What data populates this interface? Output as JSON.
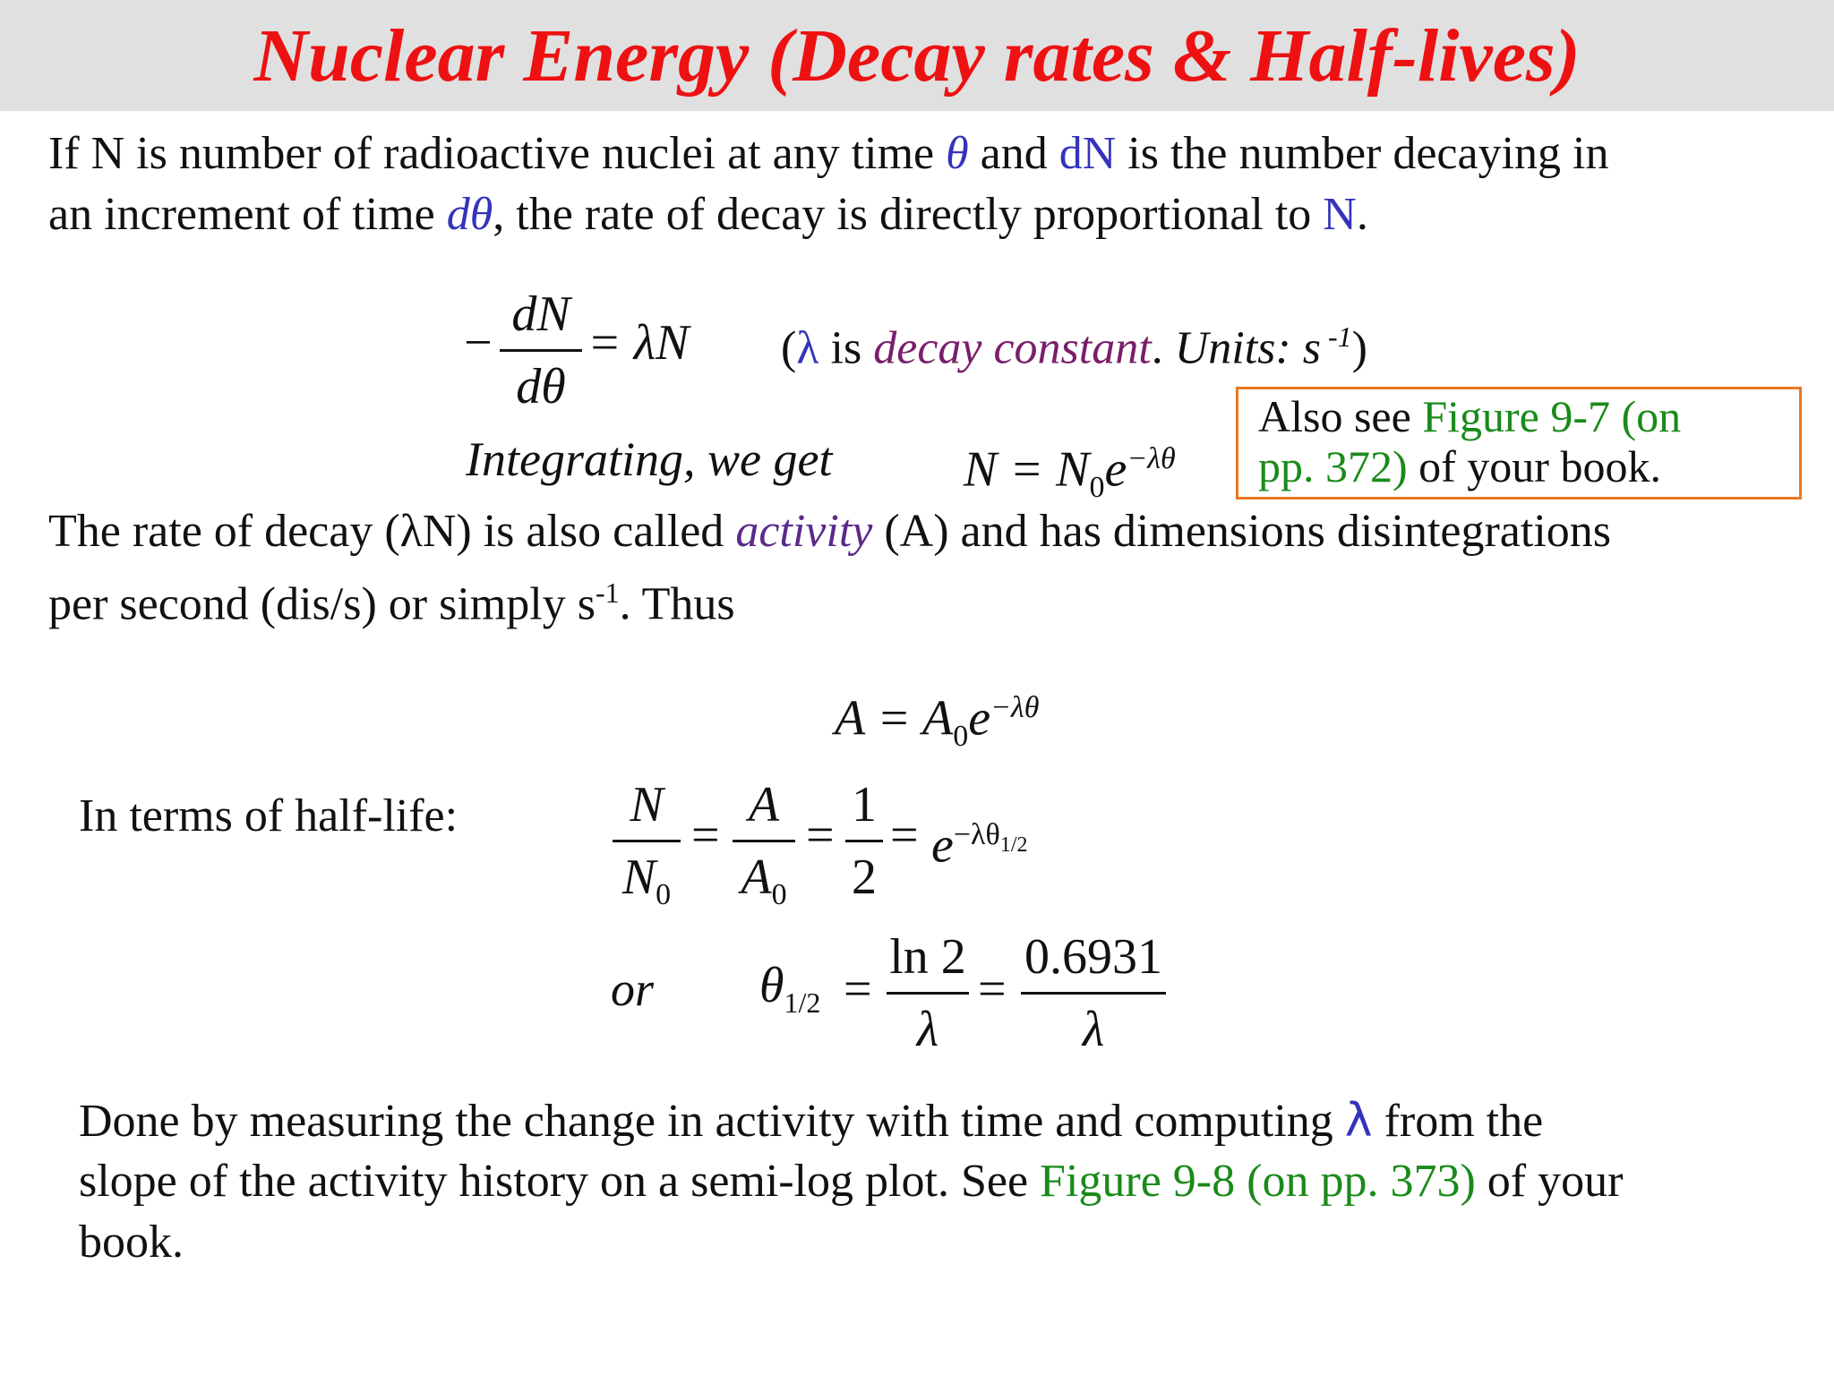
{
  "title": "Nuclear Energy (Decay rates & Half-lives)",
  "intro": {
    "l1_a": "If N is number of radioactive nuclei at any time ",
    "theta": "θ",
    "l1_b": " and ",
    "dN": "dN",
    "l1_c": " is the number decaying in",
    "l2_a": "an increment of time ",
    "dtheta": "dθ",
    "l2_b": ", the rate of decay is directly proportional to ",
    "N": "N",
    "l2_c": "."
  },
  "eq1": {
    "minus": "−",
    "num": "dN",
    "den": "dθ",
    "rhs": "= λN"
  },
  "eq1_note": {
    "open": "(",
    "lambda": "λ",
    "is": " is ",
    "decay_constant": "decay constant",
    "dot": ".",
    "units_label": " Units:",
    "units_value": " s",
    "units_exp": " -1",
    "close": ")"
  },
  "integrating": {
    "text": "Integrating, we get",
    "lhs": "N = N",
    "sub": "0",
    "e": "e",
    "exp": "−λθ"
  },
  "reference_box": {
    "a": "Also see ",
    "link": "Figure 9-7 (on",
    "link2": "pp. 372)",
    "b": " of your book."
  },
  "activity_para": {
    "l1_a": "The rate of decay (λN) is also called ",
    "activity": "activity",
    "l1_b": " (A) and has dimensions disintegrations",
    "l2_a": "per second (dis/s) or simply s",
    "l2_sup": "-1",
    "l2_b": ". Thus"
  },
  "eq_activity": {
    "lhs": "A = A",
    "sub": "0",
    "e": "e",
    "exp": "−λθ"
  },
  "halflife": {
    "label": "In terms of half-life:",
    "f1_num": "N",
    "f1_den": "N",
    "f1_den_sub": "0",
    "f2_num": "A",
    "f2_den": "A",
    "f2_den_sub": "0",
    "f3_num": "1",
    "f3_den": "2",
    "eq": "=",
    "e": "e",
    "exp": "−λθ",
    "exp_sub": "1/2"
  },
  "halflife2": {
    "or": "or",
    "lhs": "θ",
    "lhs_sub": "1/2",
    "f1_num": "ln 2",
    "f1_den": "λ",
    "f2_num": "0.6931",
    "f2_den": "λ",
    "eq": "="
  },
  "closing": {
    "l1_a": "Done by measuring the change in activity with time and computing ",
    "lambda": "λ",
    "l1_b": " from the",
    "l2_a": "slope of the activity history on a semi-log plot. See ",
    "link": "Figure 9-8 (on pp. 373)",
    "l2_b": " of your",
    "l3": "book."
  }
}
